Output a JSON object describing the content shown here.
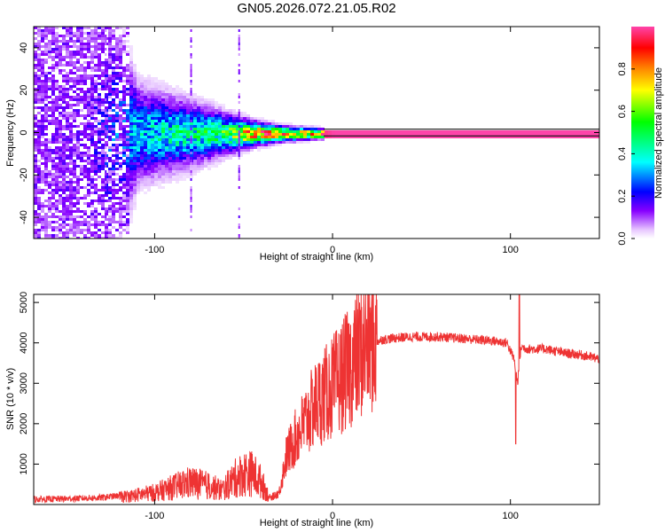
{
  "title": "GN05.2026.072.21.05.R02",
  "chart_data": [
    {
      "type": "heatmap",
      "name": "spectrogram",
      "xlabel": "Height of straight line (km)",
      "ylabel": "Frequency (Hz)",
      "xlim": [
        -168,
        150
      ],
      "ylim": [
        -50,
        50
      ],
      "xticks": [
        -100,
        0,
        100
      ],
      "xtick_labels": [
        "-100",
        "0",
        "100"
      ],
      "yticks": [
        -40,
        -20,
        0,
        20,
        40
      ],
      "ytick_labels": [
        "-40",
        "-20",
        "0",
        "20",
        "40"
      ],
      "description_points": [
        {
          "x": -140,
          "spread_hz": 50,
          "peak_amplitude": 0.15
        },
        {
          "x": -110,
          "spread_hz": 12,
          "peak_amplitude": 0.4
        },
        {
          "x": -80,
          "spread_hz": 8,
          "peak_amplitude": 0.5
        },
        {
          "x": -60,
          "spread_hz": 5,
          "peak_amplitude": 0.6
        },
        {
          "x": -45,
          "spread_hz": 3,
          "peak_amplitude": 0.95
        },
        {
          "x": -30,
          "spread_hz": 2,
          "peak_amplitude": 0.9
        },
        {
          "x": 0,
          "spread_hz": 1,
          "peak_amplitude": 1.0
        },
        {
          "x": 150,
          "spread_hz": 1,
          "peak_amplitude": 1.0
        }
      ],
      "colorbar": {
        "label": "Normalized spectral amplitude",
        "range": [
          0.0,
          1.0
        ],
        "ticks": [
          0.0,
          0.2,
          0.4,
          0.6,
          0.8
        ],
        "tick_labels": [
          "0.0",
          "0.2",
          "0.4",
          "0.6",
          "0.8"
        ],
        "colors": [
          "#ffffff",
          "#e8c8ff",
          "#8800ff",
          "#0000ff",
          "#00ffff",
          "#00ff00",
          "#ffff00",
          "#ff8800",
          "#ff0000",
          "#ff44aa"
        ]
      }
    },
    {
      "type": "line",
      "name": "snr",
      "xlabel": "Height of straight line (km)",
      "ylabel": "SNR (10 * v/v)",
      "xlim": [
        -168,
        150
      ],
      "ylim": [
        0,
        5200
      ],
      "xticks": [
        -100,
        0,
        100
      ],
      "xtick_labels": [
        "-100",
        "0",
        "100"
      ],
      "yticks": [
        1000,
        2000,
        3000,
        4000,
        5000
      ],
      "ytick_labels": [
        "1000",
        "2000",
        "3000",
        "4000",
        "5000"
      ],
      "color": "#ee3333",
      "series": [
        {
          "name": "SNR",
          "x": [
            -168,
            -150,
            -130,
            -115,
            -100,
            -90,
            -80,
            -70,
            -62,
            -55,
            -50,
            -45,
            -40,
            -35,
            -30,
            -26,
            -22,
            -18,
            -14,
            -10,
            -6,
            -2,
            2,
            6,
            10,
            15,
            20,
            28,
            35,
            45,
            60,
            75,
            90,
            98,
            102,
            104,
            106,
            110,
            120,
            130,
            140,
            150
          ],
          "y": [
            130,
            140,
            170,
            240,
            350,
            500,
            650,
            550,
            420,
            750,
            900,
            900,
            650,
            150,
            300,
            1200,
            1550,
            1850,
            2150,
            2450,
            2650,
            2800,
            3000,
            3200,
            3400,
            3750,
            3950,
            4080,
            4120,
            4150,
            4150,
            4100,
            4050,
            4000,
            3600,
            3000,
            3900,
            3850,
            3850,
            3750,
            3700,
            3600
          ]
        }
      ],
      "spike": {
        "x": 103,
        "low": 1500,
        "high": 5200
      }
    }
  ]
}
